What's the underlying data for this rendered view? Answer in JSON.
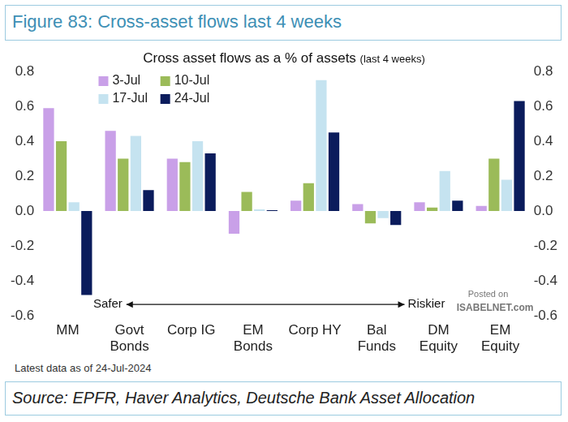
{
  "chart_data": {
    "type": "bar",
    "figure_title": "Figure 83: Cross-asset flows last 4 weeks",
    "title": "Cross asset flows as a % of assets",
    "subtitle": "(last 4 weeks)",
    "categories": [
      "MM",
      [
        "Govt",
        "Bonds"
      ],
      "Corp IG",
      [
        "EM",
        "Bonds"
      ],
      "Corp HY",
      [
        "Bal",
        "Funds"
      ],
      [
        "DM",
        "Equity"
      ],
      [
        "EM",
        "Equity"
      ]
    ],
    "series": [
      {
        "name": "3-Jul",
        "color": "#c9a0e8",
        "values": [
          0.59,
          0.46,
          0.3,
          -0.13,
          0.06,
          0.04,
          0.05,
          0.03
        ]
      },
      {
        "name": "10-Jul",
        "color": "#9bbb59",
        "values": [
          0.4,
          0.3,
          0.28,
          0.11,
          0.16,
          -0.07,
          0.02,
          0.3
        ]
      },
      {
        "name": "17-Jul",
        "color": "#c5e3f0",
        "values": [
          0.05,
          0.43,
          0.4,
          0.01,
          0.75,
          -0.04,
          0.23,
          0.18
        ]
      },
      {
        "name": "24-Jul",
        "color": "#0b1c5c",
        "values": [
          -0.48,
          0.12,
          0.33,
          0.005,
          0.45,
          -0.08,
          0.06,
          0.63
        ]
      }
    ],
    "ylim": [
      -0.6,
      0.8
    ],
    "yticks": [
      -0.6,
      -0.4,
      -0.2,
      {
        "value": 0,
        "label": "0.0"
      },
      0.2,
      0.4,
      0.6,
      0.8
    ],
    "y2lim": [
      -0.6,
      0.8
    ],
    "y2ticks": [
      -0.6,
      -0.4,
      -0.2,
      {
        "value": 0,
        "label": "0.0"
      },
      0.2,
      0.4,
      0.6,
      0.8
    ],
    "grid": false,
    "legend": "top-left",
    "annotations": {
      "left": "Safer",
      "right": "Riskier",
      "watermark": [
        "Posted on",
        "ISABELNET.com"
      ]
    },
    "note": "Latest data as of 24-Jul-2024",
    "source": "Source: EPFR, Haver Analytics, Deutsche Bank Asset Allocation"
  }
}
